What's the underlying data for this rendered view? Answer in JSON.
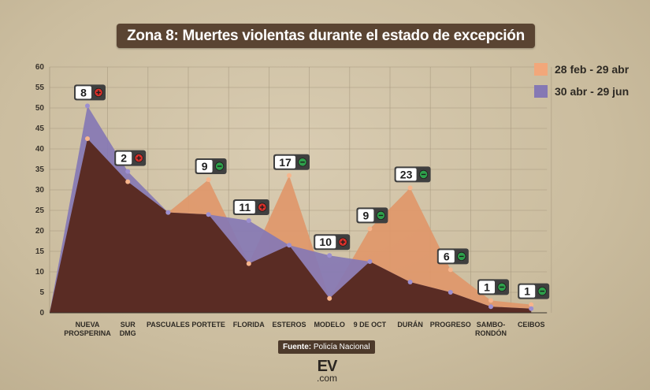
{
  "title": "Zona 8: Muertes violentas durante el estado de excepción",
  "legend": [
    {
      "label": "28 feb - 29 abr",
      "color": "#f2a77a"
    },
    {
      "label": "30 abr - 29 jun",
      "color": "#8578b4"
    }
  ],
  "source_label": "Fuente:",
  "source_text": "Policía Nacional",
  "logo_mark": "EV",
  "logo_domain": ".com",
  "chart_data": {
    "type": "area",
    "categories": [
      "NUEVA PROSPERINA",
      "SUR DMG",
      "PASCUALES",
      "PORTETE",
      "FLORIDA",
      "ESTEROS",
      "MODELO",
      "9 DE OCT",
      "DURÁN",
      "PROGRESO",
      "SAMBO-RONDÓN",
      "CEIBOS"
    ],
    "category_lines": [
      [
        "NUEVA",
        "PROSPERINA"
      ],
      [
        "SUR",
        "DMG"
      ],
      [
        "PASCUALES"
      ],
      [
        "PORTETE"
      ],
      [
        "FLORIDA"
      ],
      [
        "ESTEROS"
      ],
      [
        "MODELO"
      ],
      [
        "9 DE OCT"
      ],
      [
        "DURÁN"
      ],
      [
        "PROGRESO"
      ],
      [
        "SAMBO-",
        "RONDÓN"
      ],
      [
        "CEIBOS"
      ]
    ],
    "ylim": [
      0,
      60
    ],
    "yticks": [
      0,
      5,
      10,
      15,
      20,
      25,
      30,
      35,
      40,
      45,
      50,
      55,
      60
    ],
    "grid": true,
    "series": [
      {
        "name": "28 feb - 29 abr",
        "color": "#f2a77a",
        "values": [
          42.5,
          32,
          24.5,
          32.5,
          12,
          33.5,
          3.5,
          20.5,
          30.5,
          10.5,
          3,
          2
        ]
      },
      {
        "name": "30 abr - 29 jun",
        "color": "#8578b4",
        "values": [
          50.5,
          34.5,
          24.5,
          24,
          22.5,
          16.5,
          14,
          12.5,
          7.5,
          5,
          1.5,
          1
        ]
      }
    ],
    "annotations": [
      {
        "category": "NUEVA PROSPERINA",
        "label": "8",
        "trend": "up"
      },
      {
        "category": "SUR DMG",
        "label": "2",
        "trend": "up"
      },
      {
        "category": "PORTETE",
        "label": "9",
        "trend": "down"
      },
      {
        "category": "FLORIDA",
        "label": "11",
        "trend": "up"
      },
      {
        "category": "ESTEROS",
        "label": "17",
        "trend": "down"
      },
      {
        "category": "MODELO",
        "label": "10",
        "trend": "up"
      },
      {
        "category": "9 DE OCT",
        "label": "9",
        "trend": "down"
      },
      {
        "category": "DURÁN",
        "label": "23",
        "trend": "down"
      },
      {
        "category": "PROGRESO",
        "label": "6",
        "trend": "down"
      },
      {
        "category": "SAMBO-RONDÓN",
        "label": "1",
        "trend": "down"
      },
      {
        "category": "CEIBOS",
        "label": "1",
        "trend": "down"
      }
    ],
    "trend_colors": {
      "up": "#d9302a",
      "down": "#2ea04b"
    }
  }
}
